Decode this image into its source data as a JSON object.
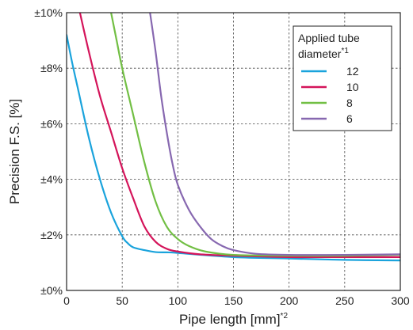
{
  "chart_data": {
    "type": "line",
    "xlabel": "Pipe length [mm]",
    "xlabel_note": "*2",
    "ylabel": "Precision F.S. [%]",
    "xlim": [
      0,
      300
    ],
    "ylim": [
      0,
      10
    ],
    "x_ticks": [
      0,
      50,
      100,
      150,
      200,
      250,
      300
    ],
    "x_tick_labels": [
      "0",
      "50",
      "100",
      "150",
      "200",
      "250",
      "300"
    ],
    "y_ticks": [
      0,
      2,
      4,
      6,
      8,
      10
    ],
    "y_tick_labels": [
      "±0%",
      "±2%",
      "±4%",
      "±6%",
      "±8%",
      "±10%"
    ],
    "grid": true,
    "legend": {
      "title_line1": "Applied tube",
      "title_line2": "diameter",
      "title_note": "*1",
      "placement": "top-right"
    },
    "series": [
      {
        "name": "12",
        "color": "#1aa3dc",
        "points": [
          [
            0,
            9.2
          ],
          [
            5,
            8.2
          ],
          [
            10,
            7.3
          ],
          [
            20,
            5.5
          ],
          [
            30,
            4.0
          ],
          [
            40,
            2.8
          ],
          [
            50,
            1.95
          ],
          [
            55,
            1.7
          ],
          [
            60,
            1.55
          ],
          [
            70,
            1.45
          ],
          [
            80,
            1.38
          ],
          [
            90,
            1.37
          ],
          [
            100,
            1.35
          ],
          [
            150,
            1.2
          ],
          [
            200,
            1.15
          ],
          [
            250,
            1.1
          ],
          [
            300,
            1.08
          ]
        ]
      },
      {
        "name": "10",
        "color": "#d4145a",
        "points": [
          [
            12,
            10.0
          ],
          [
            20,
            8.6
          ],
          [
            30,
            7.0
          ],
          [
            40,
            5.7
          ],
          [
            50,
            4.4
          ],
          [
            60,
            3.3
          ],
          [
            70,
            2.3
          ],
          [
            80,
            1.75
          ],
          [
            90,
            1.5
          ],
          [
            100,
            1.4
          ],
          [
            120,
            1.3
          ],
          [
            150,
            1.25
          ],
          [
            200,
            1.2
          ],
          [
            250,
            1.2
          ],
          [
            300,
            1.2
          ]
        ]
      },
      {
        "name": "8",
        "color": "#72bf44",
        "points": [
          [
            40,
            10.0
          ],
          [
            45,
            9.0
          ],
          [
            50,
            8.0
          ],
          [
            60,
            6.3
          ],
          [
            70,
            4.6
          ],
          [
            80,
            3.2
          ],
          [
            90,
            2.3
          ],
          [
            100,
            1.85
          ],
          [
            110,
            1.6
          ],
          [
            125,
            1.4
          ],
          [
            150,
            1.28
          ],
          [
            200,
            1.25
          ],
          [
            250,
            1.25
          ],
          [
            300,
            1.28
          ]
        ]
      },
      {
        "name": "6",
        "color": "#8768b0",
        "points": [
          [
            75,
            10.0
          ],
          [
            80,
            8.6
          ],
          [
            85,
            7.0
          ],
          [
            90,
            5.7
          ],
          [
            95,
            4.6
          ],
          [
            100,
            3.8
          ],
          [
            110,
            2.9
          ],
          [
            120,
            2.3
          ],
          [
            130,
            1.85
          ],
          [
            140,
            1.6
          ],
          [
            150,
            1.45
          ],
          [
            170,
            1.32
          ],
          [
            200,
            1.28
          ],
          [
            250,
            1.28
          ],
          [
            300,
            1.3
          ]
        ]
      }
    ]
  }
}
